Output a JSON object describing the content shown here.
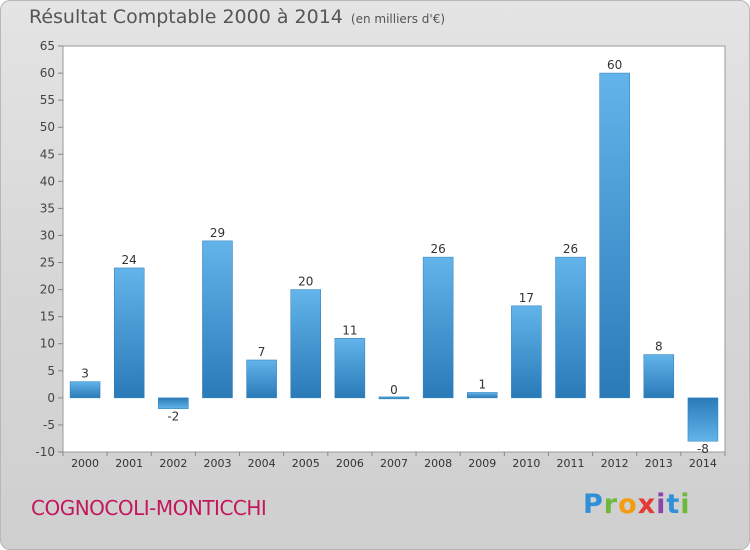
{
  "header": {
    "title": "Résultat Comptable 2000 à 2014",
    "unit": "(en milliers d'€)"
  },
  "footer": {
    "commune": "COGNOCOLI-MONTICCHI",
    "logo_text": "Proxiti"
  },
  "colors": {
    "bar_light": "#62b4ea",
    "bar_dark": "#2a7ab8",
    "commune_text": "#c2185b"
  },
  "chart_data": {
    "type": "bar",
    "categories": [
      "2000",
      "2001",
      "2002",
      "2003",
      "2004",
      "2005",
      "2006",
      "2007",
      "2008",
      "2009",
      "2010",
      "2011",
      "2012",
      "2013",
      "2014"
    ],
    "values": [
      3,
      24,
      -2,
      29,
      7,
      20,
      11,
      0,
      26,
      1,
      17,
      26,
      60,
      8,
      -8
    ],
    "ylim": [
      -10,
      65
    ],
    "yticks": [
      -10,
      -5,
      0,
      5,
      10,
      15,
      20,
      25,
      30,
      35,
      40,
      45,
      50,
      55,
      60,
      65
    ],
    "grid": false,
    "legend": "none"
  }
}
